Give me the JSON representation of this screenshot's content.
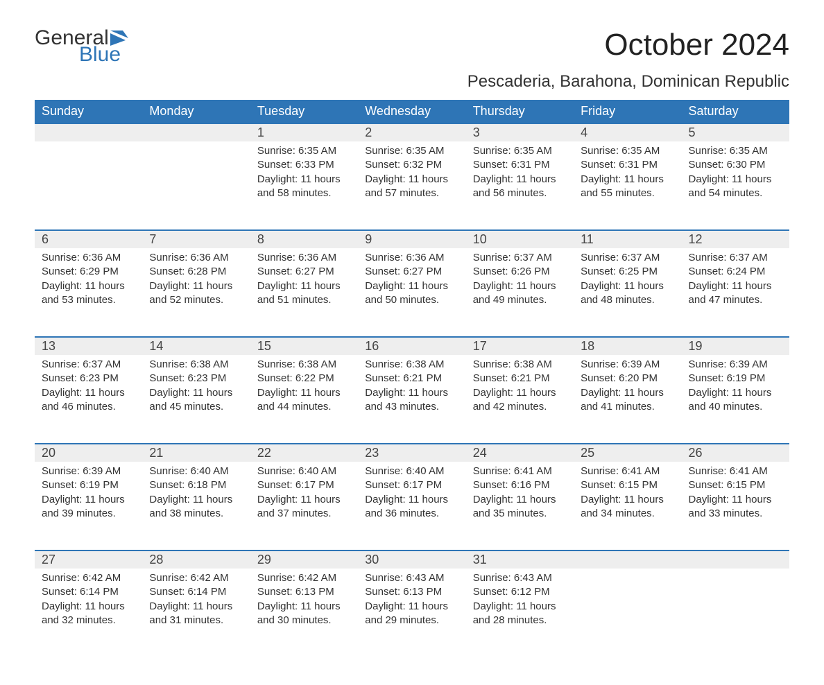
{
  "logo": {
    "text_general": "General",
    "text_blue": "Blue",
    "icon_color": "#2e75b6"
  },
  "title": "October 2024",
  "subtitle": "Pescaderia, Barahona, Dominican Republic",
  "colors": {
    "header_bg": "#2e75b6",
    "header_text": "#ffffff",
    "daynum_bg": "#eeeeee",
    "daynum_border": "#2e75b6",
    "body_text": "#333333",
    "background": "#ffffff"
  },
  "typography": {
    "title_fontsize": 44,
    "subtitle_fontsize": 24,
    "header_fontsize": 18,
    "daynum_fontsize": 18,
    "cell_fontsize": 15
  },
  "weekdays": [
    "Sunday",
    "Monday",
    "Tuesday",
    "Wednesday",
    "Thursday",
    "Friday",
    "Saturday"
  ],
  "weeks": [
    [
      null,
      null,
      {
        "day": "1",
        "sunrise": "Sunrise: 6:35 AM",
        "sunset": "Sunset: 6:33 PM",
        "daylight1": "Daylight: 11 hours",
        "daylight2": "and 58 minutes."
      },
      {
        "day": "2",
        "sunrise": "Sunrise: 6:35 AM",
        "sunset": "Sunset: 6:32 PM",
        "daylight1": "Daylight: 11 hours",
        "daylight2": "and 57 minutes."
      },
      {
        "day": "3",
        "sunrise": "Sunrise: 6:35 AM",
        "sunset": "Sunset: 6:31 PM",
        "daylight1": "Daylight: 11 hours",
        "daylight2": "and 56 minutes."
      },
      {
        "day": "4",
        "sunrise": "Sunrise: 6:35 AM",
        "sunset": "Sunset: 6:31 PM",
        "daylight1": "Daylight: 11 hours",
        "daylight2": "and 55 minutes."
      },
      {
        "day": "5",
        "sunrise": "Sunrise: 6:35 AM",
        "sunset": "Sunset: 6:30 PM",
        "daylight1": "Daylight: 11 hours",
        "daylight2": "and 54 minutes."
      }
    ],
    [
      {
        "day": "6",
        "sunrise": "Sunrise: 6:36 AM",
        "sunset": "Sunset: 6:29 PM",
        "daylight1": "Daylight: 11 hours",
        "daylight2": "and 53 minutes."
      },
      {
        "day": "7",
        "sunrise": "Sunrise: 6:36 AM",
        "sunset": "Sunset: 6:28 PM",
        "daylight1": "Daylight: 11 hours",
        "daylight2": "and 52 minutes."
      },
      {
        "day": "8",
        "sunrise": "Sunrise: 6:36 AM",
        "sunset": "Sunset: 6:27 PM",
        "daylight1": "Daylight: 11 hours",
        "daylight2": "and 51 minutes."
      },
      {
        "day": "9",
        "sunrise": "Sunrise: 6:36 AM",
        "sunset": "Sunset: 6:27 PM",
        "daylight1": "Daylight: 11 hours",
        "daylight2": "and 50 minutes."
      },
      {
        "day": "10",
        "sunrise": "Sunrise: 6:37 AM",
        "sunset": "Sunset: 6:26 PM",
        "daylight1": "Daylight: 11 hours",
        "daylight2": "and 49 minutes."
      },
      {
        "day": "11",
        "sunrise": "Sunrise: 6:37 AM",
        "sunset": "Sunset: 6:25 PM",
        "daylight1": "Daylight: 11 hours",
        "daylight2": "and 48 minutes."
      },
      {
        "day": "12",
        "sunrise": "Sunrise: 6:37 AM",
        "sunset": "Sunset: 6:24 PM",
        "daylight1": "Daylight: 11 hours",
        "daylight2": "and 47 minutes."
      }
    ],
    [
      {
        "day": "13",
        "sunrise": "Sunrise: 6:37 AM",
        "sunset": "Sunset: 6:23 PM",
        "daylight1": "Daylight: 11 hours",
        "daylight2": "and 46 minutes."
      },
      {
        "day": "14",
        "sunrise": "Sunrise: 6:38 AM",
        "sunset": "Sunset: 6:23 PM",
        "daylight1": "Daylight: 11 hours",
        "daylight2": "and 45 minutes."
      },
      {
        "day": "15",
        "sunrise": "Sunrise: 6:38 AM",
        "sunset": "Sunset: 6:22 PM",
        "daylight1": "Daylight: 11 hours",
        "daylight2": "and 44 minutes."
      },
      {
        "day": "16",
        "sunrise": "Sunrise: 6:38 AM",
        "sunset": "Sunset: 6:21 PM",
        "daylight1": "Daylight: 11 hours",
        "daylight2": "and 43 minutes."
      },
      {
        "day": "17",
        "sunrise": "Sunrise: 6:38 AM",
        "sunset": "Sunset: 6:21 PM",
        "daylight1": "Daylight: 11 hours",
        "daylight2": "and 42 minutes."
      },
      {
        "day": "18",
        "sunrise": "Sunrise: 6:39 AM",
        "sunset": "Sunset: 6:20 PM",
        "daylight1": "Daylight: 11 hours",
        "daylight2": "and 41 minutes."
      },
      {
        "day": "19",
        "sunrise": "Sunrise: 6:39 AM",
        "sunset": "Sunset: 6:19 PM",
        "daylight1": "Daylight: 11 hours",
        "daylight2": "and 40 minutes."
      }
    ],
    [
      {
        "day": "20",
        "sunrise": "Sunrise: 6:39 AM",
        "sunset": "Sunset: 6:19 PM",
        "daylight1": "Daylight: 11 hours",
        "daylight2": "and 39 minutes."
      },
      {
        "day": "21",
        "sunrise": "Sunrise: 6:40 AM",
        "sunset": "Sunset: 6:18 PM",
        "daylight1": "Daylight: 11 hours",
        "daylight2": "and 38 minutes."
      },
      {
        "day": "22",
        "sunrise": "Sunrise: 6:40 AM",
        "sunset": "Sunset: 6:17 PM",
        "daylight1": "Daylight: 11 hours",
        "daylight2": "and 37 minutes."
      },
      {
        "day": "23",
        "sunrise": "Sunrise: 6:40 AM",
        "sunset": "Sunset: 6:17 PM",
        "daylight1": "Daylight: 11 hours",
        "daylight2": "and 36 minutes."
      },
      {
        "day": "24",
        "sunrise": "Sunrise: 6:41 AM",
        "sunset": "Sunset: 6:16 PM",
        "daylight1": "Daylight: 11 hours",
        "daylight2": "and 35 minutes."
      },
      {
        "day": "25",
        "sunrise": "Sunrise: 6:41 AM",
        "sunset": "Sunset: 6:15 PM",
        "daylight1": "Daylight: 11 hours",
        "daylight2": "and 34 minutes."
      },
      {
        "day": "26",
        "sunrise": "Sunrise: 6:41 AM",
        "sunset": "Sunset: 6:15 PM",
        "daylight1": "Daylight: 11 hours",
        "daylight2": "and 33 minutes."
      }
    ],
    [
      {
        "day": "27",
        "sunrise": "Sunrise: 6:42 AM",
        "sunset": "Sunset: 6:14 PM",
        "daylight1": "Daylight: 11 hours",
        "daylight2": "and 32 minutes."
      },
      {
        "day": "28",
        "sunrise": "Sunrise: 6:42 AM",
        "sunset": "Sunset: 6:14 PM",
        "daylight1": "Daylight: 11 hours",
        "daylight2": "and 31 minutes."
      },
      {
        "day": "29",
        "sunrise": "Sunrise: 6:42 AM",
        "sunset": "Sunset: 6:13 PM",
        "daylight1": "Daylight: 11 hours",
        "daylight2": "and 30 minutes."
      },
      {
        "day": "30",
        "sunrise": "Sunrise: 6:43 AM",
        "sunset": "Sunset: 6:13 PM",
        "daylight1": "Daylight: 11 hours",
        "daylight2": "and 29 minutes."
      },
      {
        "day": "31",
        "sunrise": "Sunrise: 6:43 AM",
        "sunset": "Sunset: 6:12 PM",
        "daylight1": "Daylight: 11 hours",
        "daylight2": "and 28 minutes."
      },
      null,
      null
    ]
  ]
}
